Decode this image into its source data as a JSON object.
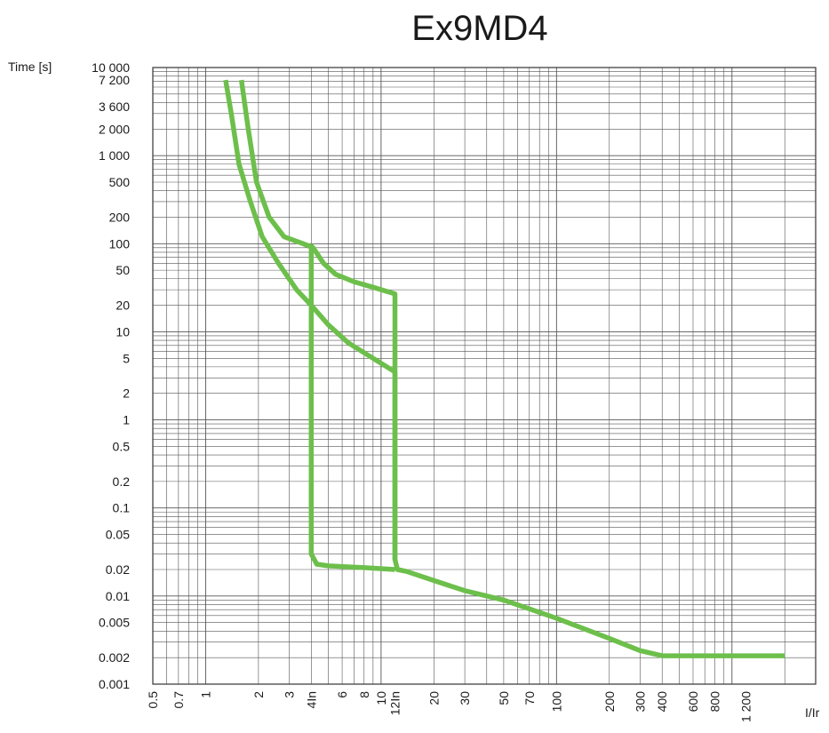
{
  "chart_data": {
    "type": "line",
    "title": "Ex9MD4",
    "ylabel": "Time [s]",
    "xlabel": "I/Ir",
    "x_scale": "log",
    "y_scale": "log",
    "xlim": [
      0.5,
      3000
    ],
    "ylim": [
      0.001,
      10000
    ],
    "grid": true,
    "x_ticks": [
      {
        "value": 0.5,
        "label": "0.5"
      },
      {
        "value": 0.7,
        "label": "0.7"
      },
      {
        "value": 1,
        "label": "1"
      },
      {
        "value": 2,
        "label": "2"
      },
      {
        "value": 3,
        "label": "3"
      },
      {
        "value": 4,
        "label": "4In",
        "highlight": true
      },
      {
        "value": 6,
        "label": "6"
      },
      {
        "value": 8,
        "label": "8"
      },
      {
        "value": 10,
        "label": "10"
      },
      {
        "value": 12,
        "label": "12In",
        "highlight": true
      },
      {
        "value": 20,
        "label": "20"
      },
      {
        "value": 30,
        "label": "30"
      },
      {
        "value": 50,
        "label": "50"
      },
      {
        "value": 70,
        "label": "70"
      },
      {
        "value": 100,
        "label": "100"
      },
      {
        "value": 200,
        "label": "200"
      },
      {
        "value": 300,
        "label": "300"
      },
      {
        "value": 400,
        "label": "400"
      },
      {
        "value": 600,
        "label": "600"
      },
      {
        "value": 800,
        "label": "800"
      },
      {
        "value": 1200,
        "label": "1 200"
      }
    ],
    "y_ticks": [
      {
        "value": 10000,
        "label": "10 000"
      },
      {
        "value": 7200,
        "label": "7 200"
      },
      {
        "value": 3600,
        "label": "3 600"
      },
      {
        "value": 2000,
        "label": "2 000"
      },
      {
        "value": 1000,
        "label": "1 000"
      },
      {
        "value": 500,
        "label": "500"
      },
      {
        "value": 200,
        "label": "200"
      },
      {
        "value": 100,
        "label": "100"
      },
      {
        "value": 50,
        "label": "50"
      },
      {
        "value": 20,
        "label": "20"
      },
      {
        "value": 10,
        "label": "10"
      },
      {
        "value": 5,
        "label": "5"
      },
      {
        "value": 2,
        "label": "2"
      },
      {
        "value": 1,
        "label": "1"
      },
      {
        "value": 0.5,
        "label": "0.5"
      },
      {
        "value": 0.2,
        "label": "0.2"
      },
      {
        "value": 0.1,
        "label": "0.1"
      },
      {
        "value": 0.05,
        "label": "0.05"
      },
      {
        "value": 0.02,
        "label": "0.02"
      },
      {
        "value": 0.01,
        "label": "0.01"
      },
      {
        "value": 0.005,
        "label": "0.005"
      },
      {
        "value": 0.002,
        "label": "0.002"
      },
      {
        "value": 0.001,
        "label": "0.001"
      }
    ],
    "series": [
      {
        "color": "#6dbf4b",
        "points": [
          [
            1.6,
            7200
          ],
          [
            1.75,
            2000
          ],
          [
            1.95,
            500
          ],
          [
            2.3,
            200
          ],
          [
            2.8,
            120
          ],
          [
            3.6,
            100
          ],
          [
            4.1,
            90
          ],
          [
            4.7,
            60
          ],
          [
            5.5,
            45
          ],
          [
            7,
            37
          ],
          [
            9,
            32
          ],
          [
            12,
            27
          ],
          [
            12,
            0.026
          ],
          [
            12.4,
            0.02
          ],
          [
            14,
            0.019
          ],
          [
            20,
            0.015
          ],
          [
            30,
            0.0115
          ],
          [
            50,
            0.009
          ],
          [
            100,
            0.0056
          ],
          [
            200,
            0.0033
          ],
          [
            300,
            0.0024
          ],
          [
            400,
            0.0021
          ],
          [
            1200,
            0.0021
          ],
          [
            2000,
            0.0021
          ]
        ]
      },
      {
        "color": "#6dbf4b",
        "points": [
          [
            1.3,
            7200
          ],
          [
            1.4,
            3000
          ],
          [
            1.55,
            800
          ],
          [
            1.8,
            300
          ],
          [
            2.1,
            120
          ],
          [
            2.6,
            60
          ],
          [
            3.3,
            30
          ],
          [
            4,
            20
          ],
          [
            5,
            12
          ],
          [
            6.5,
            7.5
          ],
          [
            9,
            5
          ],
          [
            12,
            3.5
          ],
          [
            12,
            0.026
          ]
        ]
      },
      {
        "color": "#6dbf4b",
        "points": [
          [
            4,
            100
          ],
          [
            4,
            0.03
          ],
          [
            4.3,
            0.023
          ],
          [
            5,
            0.022
          ],
          [
            8,
            0.021
          ],
          [
            12,
            0.02
          ]
        ]
      }
    ]
  }
}
